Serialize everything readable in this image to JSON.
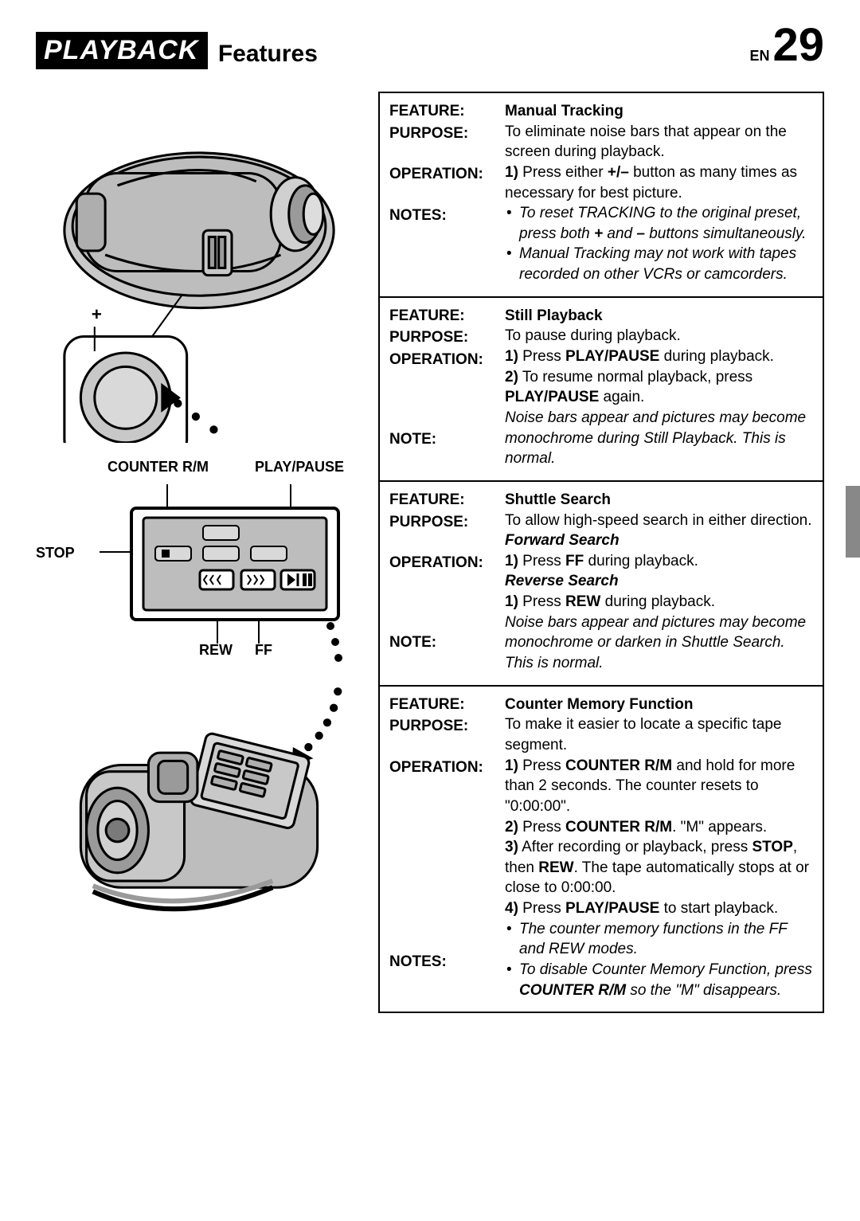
{
  "header": {
    "title_main": "PLAYBACK",
    "title_sub": "Features",
    "page_prefix": "EN",
    "page_number": "29"
  },
  "diagram_labels": {
    "counter": "COUNTER R/M",
    "play_pause": "PLAY/PAUSE",
    "stop": "STOP",
    "rew": "REW",
    "ff": "FF"
  },
  "row_labels": {
    "feature": "FEATURE:",
    "purpose": "PURPOSE:",
    "operation": "OPERATION:",
    "notes": "NOTES:",
    "note": "NOTE:"
  },
  "features": [
    {
      "title": "Manual Tracking",
      "purpose": "To eliminate noise bars that appear on the screen during playback.",
      "operation_html": "<b>1)</b> Press either <b>+/–</b> button as many times as necessary for best picture.",
      "notes": [
        "To reset TRACKING to the original preset, press both <b>+</b> and <b>–</b> buttons simultaneously.",
        "Manual Tracking may not work with tapes recorded on other VCRs or camcorders."
      ],
      "note_label": "NOTES:"
    },
    {
      "title": "Still Playback",
      "purpose": "To pause during playback.",
      "operation_html": "<b>1)</b> Press <b>PLAY/PAUSE</b> during playback.<br><b>2)</b> To resume normal playback, press <b>PLAY/PAUSE</b> again.",
      "note_text": "Noise bars appear and pictures may become monochrome during Still Playback. This is normal.",
      "note_label": "NOTE:"
    },
    {
      "title": "Shuttle Search",
      "purpose": "To allow high-speed search in either direction.",
      "operation_html": "<span class=\"op-sub\">Forward Search</span><br><b>1)</b> Press <b>FF</b> during playback.<br><span class=\"op-sub\">Reverse Search</span><br><b>1)</b> Press <b>REW</b> during playback.",
      "note_text": "Noise bars appear and pictures may become monochrome or darken in Shuttle Search. This is normal.",
      "note_label": "NOTE:"
    },
    {
      "title": "Counter Memory Function",
      "purpose": "To make it easier to locate a specific tape segment.",
      "operation_html": "<b>1)</b> Press <b>COUNTER R/M</b> and hold for more than 2 seconds. The counter resets to \"0:00:00\".<br><b>2)</b> Press <b>COUNTER R/M</b>. \"M\" appears.<br><b>3)</b> After recording or playback, press <b>STOP</b>, then <b>REW</b>. The tape automatically stops at or close to 0:00:00.<br><b>4)</b> Press <b>PLAY/PAUSE</b> to start playback.",
      "notes": [
        "The counter memory functions in the FF and REW modes.",
        "To disable Counter Memory Function, press <b>COUNTER R/M</b> so the \"M\" disappears."
      ],
      "note_label": "NOTES:"
    }
  ],
  "colors": {
    "black": "#000000",
    "white": "#ffffff",
    "gray_fill": "#bdbdbd",
    "gray_dark": "#7a7a7a",
    "gray_light": "#d9d9d9"
  }
}
